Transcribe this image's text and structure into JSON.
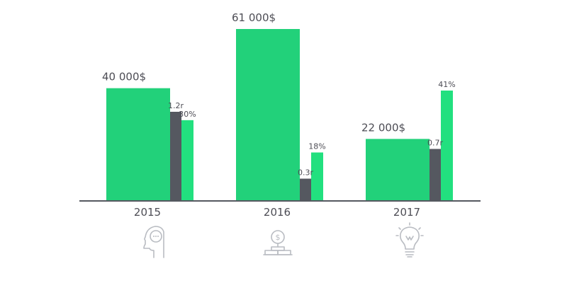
{
  "chart_data": {
    "type": "bar",
    "title": "",
    "xlabel": "",
    "ylabel": "",
    "grid": false,
    "categories": [
      "2015",
      "2016",
      "2017"
    ],
    "series": [
      {
        "values": [
          40000,
          61000,
          22000
        ],
        "labels": [
          "40 000$",
          "61 000$",
          "22 000$"
        ],
        "color": "#22d17a"
      },
      {
        "values": [
          1.2,
          0.3,
          0.7
        ],
        "labels": [
          "1.2r",
          "0.3r",
          "0.7r"
        ],
        "color": "#555860"
      },
      {
        "values": [
          30,
          18,
          41
        ],
        "labels": [
          "30%",
          "18%",
          "41%"
        ],
        "color": "#22e07f"
      }
    ]
  },
  "icons": [
    "head-idea-icon",
    "money-stack-icon",
    "lightbulb-icon"
  ],
  "icon_text": {
    "dollar": "$"
  },
  "colors": {
    "axis": "#555860",
    "icon": "#b9bcc2",
    "text": "#4d4d55"
  }
}
